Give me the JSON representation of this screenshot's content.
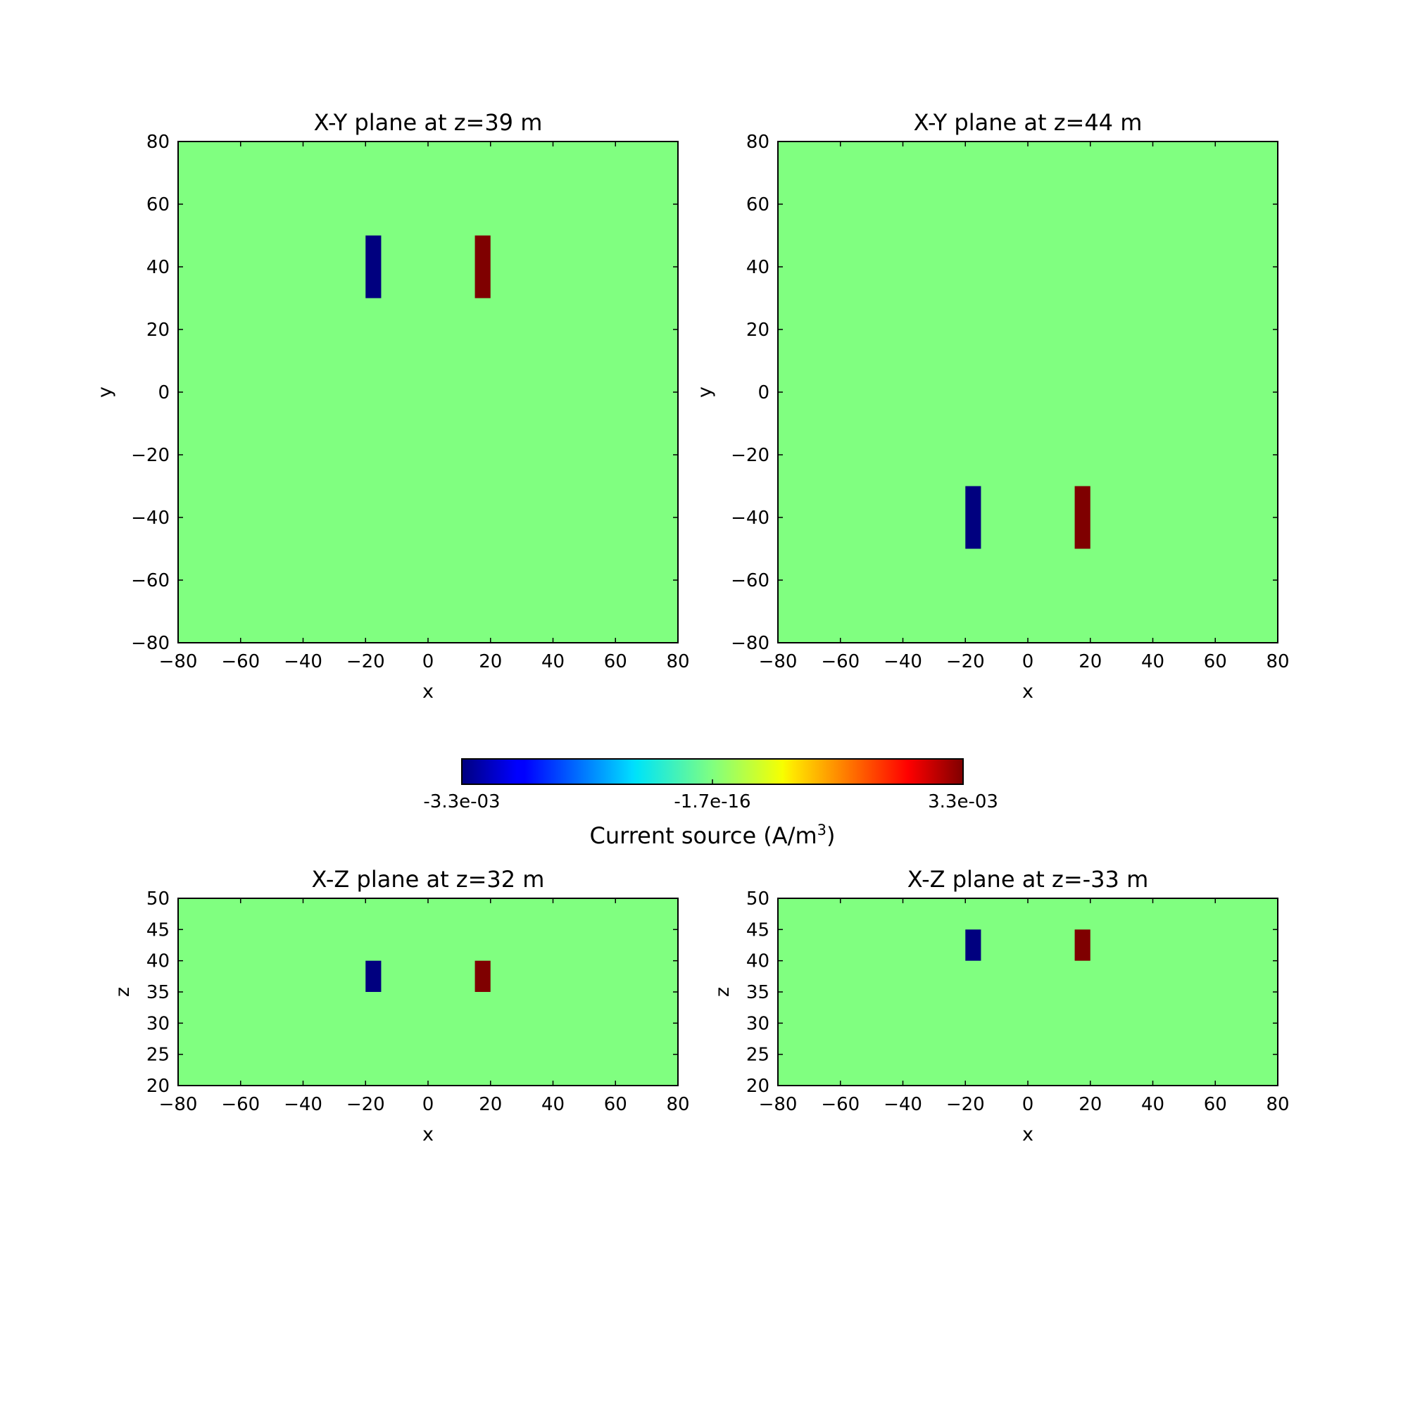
{
  "chart_data": [
    {
      "type": "heatmap",
      "title": "X-Y plane at z=39 m",
      "xlabel": "x",
      "ylabel": "y",
      "xlim": [
        -80,
        80
      ],
      "ylim": [
        -80,
        80
      ],
      "xticks": [
        -80,
        -60,
        -40,
        -20,
        0,
        20,
        40,
        60,
        80
      ],
      "yticks": [
        -80,
        -60,
        -40,
        -20,
        0,
        20,
        40,
        60,
        80
      ],
      "background_value": 0,
      "blocks": [
        {
          "x": [
            -20,
            -15
          ],
          "y": [
            30,
            50
          ],
          "value": -0.0033
        },
        {
          "x": [
            15,
            20
          ],
          "y": [
            30,
            50
          ],
          "value": 0.0033
        }
      ]
    },
    {
      "type": "heatmap",
      "title": "X-Y plane at z=44 m",
      "xlabel": "x",
      "ylabel": "y",
      "xlim": [
        -80,
        80
      ],
      "ylim": [
        -80,
        80
      ],
      "xticks": [
        -80,
        -60,
        -40,
        -20,
        0,
        20,
        40,
        60,
        80
      ],
      "yticks": [
        -80,
        -60,
        -40,
        -20,
        0,
        20,
        40,
        60,
        80
      ],
      "background_value": 0,
      "blocks": [
        {
          "x": [
            -20,
            -15
          ],
          "y": [
            -50,
            -30
          ],
          "value": -0.0033
        },
        {
          "x": [
            15,
            20
          ],
          "y": [
            -50,
            -30
          ],
          "value": 0.0033
        }
      ]
    },
    {
      "type": "heatmap",
      "title": "X-Z plane at z=32 m",
      "xlabel": "x",
      "ylabel": "z",
      "xlim": [
        -80,
        80
      ],
      "ylim": [
        20,
        50
      ],
      "xticks": [
        -80,
        -60,
        -40,
        -20,
        0,
        20,
        40,
        60,
        80
      ],
      "yticks": [
        20,
        25,
        30,
        35,
        40,
        45,
        50
      ],
      "background_value": 0,
      "blocks": [
        {
          "x": [
            -20,
            -15
          ],
          "y": [
            35,
            40
          ],
          "value": -0.0033
        },
        {
          "x": [
            15,
            20
          ],
          "y": [
            35,
            40
          ],
          "value": 0.0033
        }
      ]
    },
    {
      "type": "heatmap",
      "title": "X-Z plane at z=-33 m",
      "xlabel": "x",
      "ylabel": "z",
      "xlim": [
        -80,
        80
      ],
      "ylim": [
        20,
        50
      ],
      "xticks": [
        -80,
        -60,
        -40,
        -20,
        0,
        20,
        40,
        60,
        80
      ],
      "yticks": [
        20,
        25,
        30,
        35,
        40,
        45,
        50
      ],
      "background_value": 0,
      "blocks": [
        {
          "x": [
            -20,
            -15
          ],
          "y": [
            40,
            45
          ],
          "value": -0.0033
        },
        {
          "x": [
            15,
            20
          ],
          "y": [
            40,
            45
          ],
          "value": 0.0033
        }
      ]
    }
  ],
  "colorbar": {
    "colormap": "jet",
    "vmin": -0.0033,
    "vmax": 0.0033,
    "tick_labels": [
      "-3.3e-03",
      "-1.7e-16",
      "3.3e-03"
    ],
    "label": "Current source (A/m",
    "label_superscript": "3",
    "label_suffix": ")",
    "orientation": "horizontal"
  },
  "colors": {
    "background": "#80ff80",
    "min": "#00007f",
    "max": "#7f0000"
  }
}
